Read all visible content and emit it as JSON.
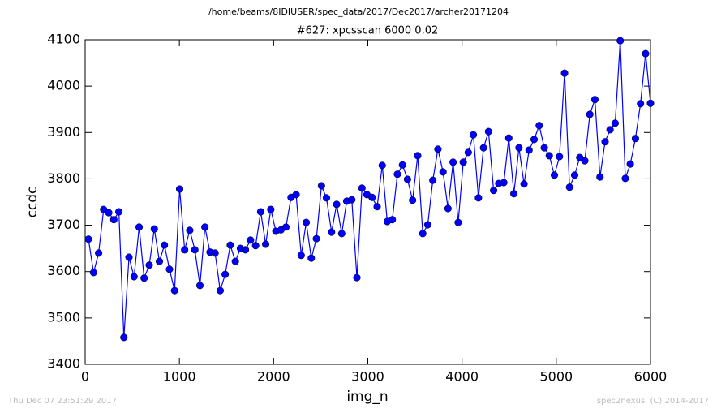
{
  "chart_data": {
    "type": "line",
    "header": "/home/beams/8IDIUSER/spec_data/2017/Dec2017/archer20171204",
    "title": "#627: xpcsscan 6000 0.02",
    "xlabel": "img_n",
    "ylabel": "ccdc",
    "timestamp": "Thu Dec 07 23:51:29 2017",
    "credit": "spec2nexus, (C) 2014-2017",
    "xlim": [
      0,
      6000
    ],
    "xticks": [
      0,
      1000,
      2000,
      3000,
      4000,
      5000,
      6000
    ],
    "ylim": [
      3400,
      4100
    ],
    "yticks": [
      3400,
      3500,
      3600,
      3700,
      3800,
      3900,
      4000,
      4100
    ],
    "x": [
      35,
      89,
      143,
      196,
      250,
      304,
      358,
      411,
      465,
      519,
      573,
      626,
      680,
      734,
      788,
      841,
      895,
      949,
      1003,
      1056,
      1110,
      1164,
      1218,
      1271,
      1325,
      1379,
      1433,
      1486,
      1540,
      1594,
      1648,
      1701,
      1755,
      1809,
      1863,
      1916,
      1970,
      2024,
      2078,
      2131,
      2185,
      2239,
      2293,
      2346,
      2400,
      2454,
      2508,
      2561,
      2615,
      2669,
      2723,
      2776,
      2830,
      2884,
      2938,
      2991,
      3045,
      3099,
      3153,
      3206,
      3260,
      3314,
      3368,
      3421,
      3475,
      3529,
      3583,
      3636,
      3690,
      3744,
      3798,
      3851,
      3905,
      3959,
      4013,
      4066,
      4120,
      4174,
      4228,
      4281,
      4335,
      4389,
      4443,
      4496,
      4550,
      4604,
      4658,
      4711,
      4765,
      4819,
      4873,
      4926,
      4980,
      5034,
      5088,
      5141,
      5195,
      5249,
      5303,
      5356,
      5410,
      5464,
      5518,
      5571,
      5625,
      5679,
      5733,
      5786,
      5840,
      5894,
      5948,
      6000
    ],
    "series": [
      {
        "color": "#0000ff",
        "values": [
          3670,
          3598,
          3640,
          3734,
          3727,
          3712,
          3729,
          3458,
          3631,
          3589,
          3696,
          3586,
          3614,
          3692,
          3622,
          3657,
          3605,
          3559,
          3778,
          3647,
          3689,
          3647,
          3570,
          3696,
          3642,
          3640,
          3559,
          3594,
          3657,
          3622,
          3650,
          3647,
          3668,
          3656,
          3729,
          3659,
          3734,
          3687,
          3690,
          3696,
          3760,
          3766,
          3635,
          3706,
          3629,
          3671,
          3785,
          3759,
          3685,
          3745,
          3682,
          3752,
          3755,
          3587,
          3780,
          3766,
          3760,
          3740,
          3829,
          3708,
          3712,
          3810,
          3830,
          3799,
          3754,
          3850,
          3682,
          3701,
          3797,
          3864,
          3815,
          3736,
          3836,
          3706,
          3836,
          3857,
          3895,
          3759,
          3867,
          3902,
          3775,
          3790,
          3792,
          3888,
          3768,
          3867,
          3789,
          3862,
          3885,
          3915,
          3867,
          3850,
          3808,
          3848,
          4028,
          3782,
          3808,
          3846,
          3839,
          3939,
          3971,
          3804,
          3880,
          3906,
          3920,
          4098,
          3801,
          3832,
          3887,
          3962,
          4070,
          3963
        ]
      }
    ]
  }
}
